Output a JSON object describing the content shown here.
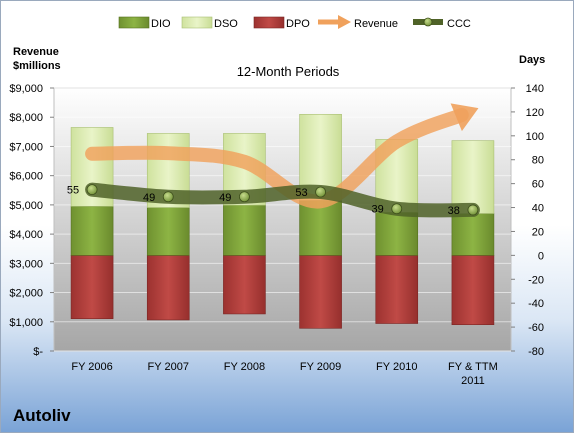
{
  "company": "Autoliv",
  "chart_data": {
    "type": "bar",
    "title": "12-Month Periods",
    "left_axis_label": [
      "Revenue",
      "$millions"
    ],
    "right_axis_label": "Days",
    "categories": [
      "FY 2006",
      "FY 2007",
      "FY 2008",
      "FY 2009",
      "FY 2010",
      "FY & TTM 2011"
    ],
    "left_ylim": [
      0,
      9000
    ],
    "left_ticks": [
      "$-",
      "$1,000",
      "$2,000",
      "$3,000",
      "$4,000",
      "$5,000",
      "$6,000",
      "$7,000",
      "$8,000",
      "$9,000"
    ],
    "right_ylim": [
      -80,
      140
    ],
    "right_ticks": [
      "-80",
      "-60",
      "-40",
      "-20",
      "0",
      "20",
      "40",
      "60",
      "80",
      "100",
      "120",
      "140"
    ],
    "series": [
      {
        "name": "DIO",
        "kind": "bar",
        "color": "#7ea33a",
        "values": [
          41,
          40,
          42,
          46,
          36,
          35
        ]
      },
      {
        "name": "DSO",
        "kind": "bar",
        "color": "#d9eab0",
        "values": [
          66,
          62,
          60,
          72,
          61,
          61
        ]
      },
      {
        "name": "DPO",
        "kind": "bar",
        "color": "#b13b39",
        "values": [
          -53,
          -54,
          -49,
          -61,
          -57,
          -58
        ]
      },
      {
        "name": "Revenue",
        "kind": "arrow",
        "color": "#f0a15c",
        "values": [
          6750,
          6769,
          6473,
          5121,
          7171,
          8232
        ]
      },
      {
        "name": "CCC",
        "kind": "line",
        "color": "#4f6228",
        "values": [
          55,
          49,
          49,
          53,
          39,
          38
        ]
      }
    ],
    "ccc_labels": [
      "55",
      "49",
      "49",
      "53",
      "39",
      "38"
    ],
    "grid": true,
    "legend_position": "top"
  }
}
